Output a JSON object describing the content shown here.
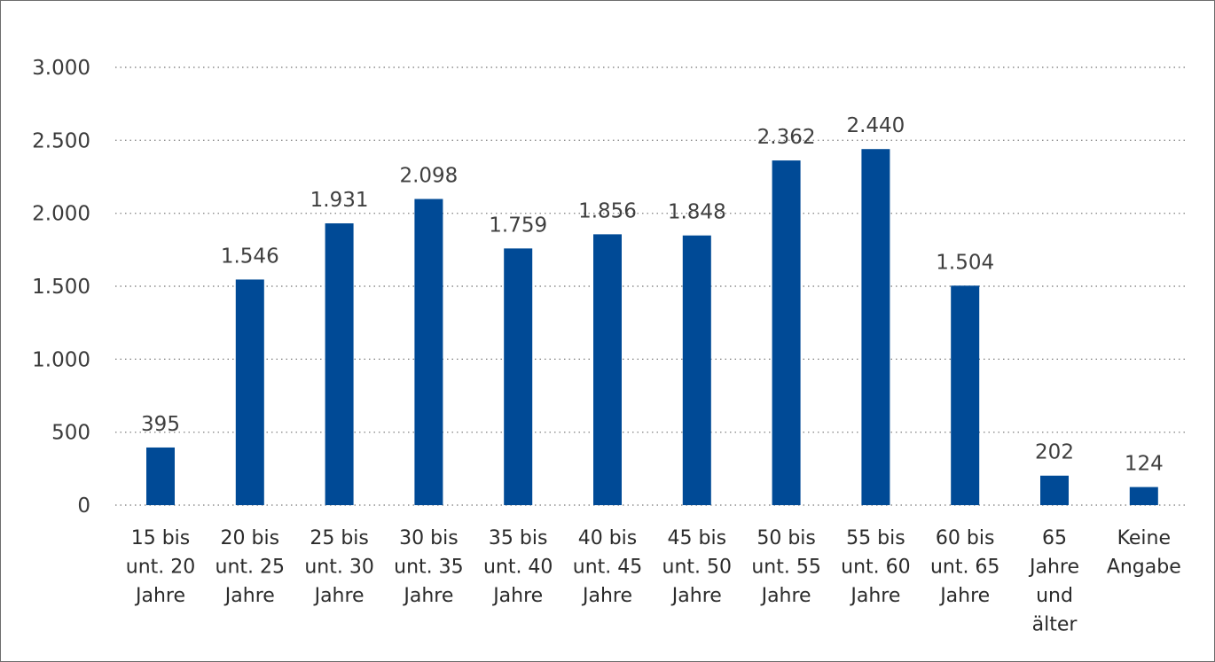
{
  "chart_data": {
    "type": "bar",
    "categories": [
      [
        "15 bis",
        "unt. 20",
        "Jahre"
      ],
      [
        "20 bis",
        "unt. 25",
        "Jahre"
      ],
      [
        "25 bis",
        "unt. 30",
        "Jahre"
      ],
      [
        "30 bis",
        "unt. 35",
        "Jahre"
      ],
      [
        "35 bis",
        "unt. 40",
        "Jahre"
      ],
      [
        "40 bis",
        "unt. 45",
        "Jahre"
      ],
      [
        "45 bis",
        "unt. 50",
        "Jahre"
      ],
      [
        "50 bis",
        "unt. 55",
        "Jahre"
      ],
      [
        "55 bis",
        "unt. 60",
        "Jahre"
      ],
      [
        "60 bis",
        "unt. 65",
        "Jahre"
      ],
      [
        "65",
        "Jahre",
        "und",
        "älter"
      ],
      [
        "Keine",
        "Angabe"
      ]
    ],
    "values": [
      395,
      1546,
      1931,
      2098,
      1759,
      1856,
      1848,
      2362,
      2440,
      1504,
      202,
      124
    ],
    "value_labels": [
      "395",
      "1.546",
      "1.931",
      "2.098",
      "1.759",
      "1.856",
      "1.848",
      "2.362",
      "2.440",
      "1.504",
      "202",
      "124"
    ],
    "y_ticks": [
      0,
      500,
      1000,
      1500,
      2000,
      2500,
      3000
    ],
    "y_tick_labels": [
      "0",
      "500",
      "1.000",
      "1.500",
      "2.000",
      "2.500",
      "3.000"
    ],
    "ylim": [
      0,
      3000
    ],
    "grid": true,
    "bar_color": "#004a96",
    "title": "",
    "xlabel": "",
    "ylabel": ""
  }
}
